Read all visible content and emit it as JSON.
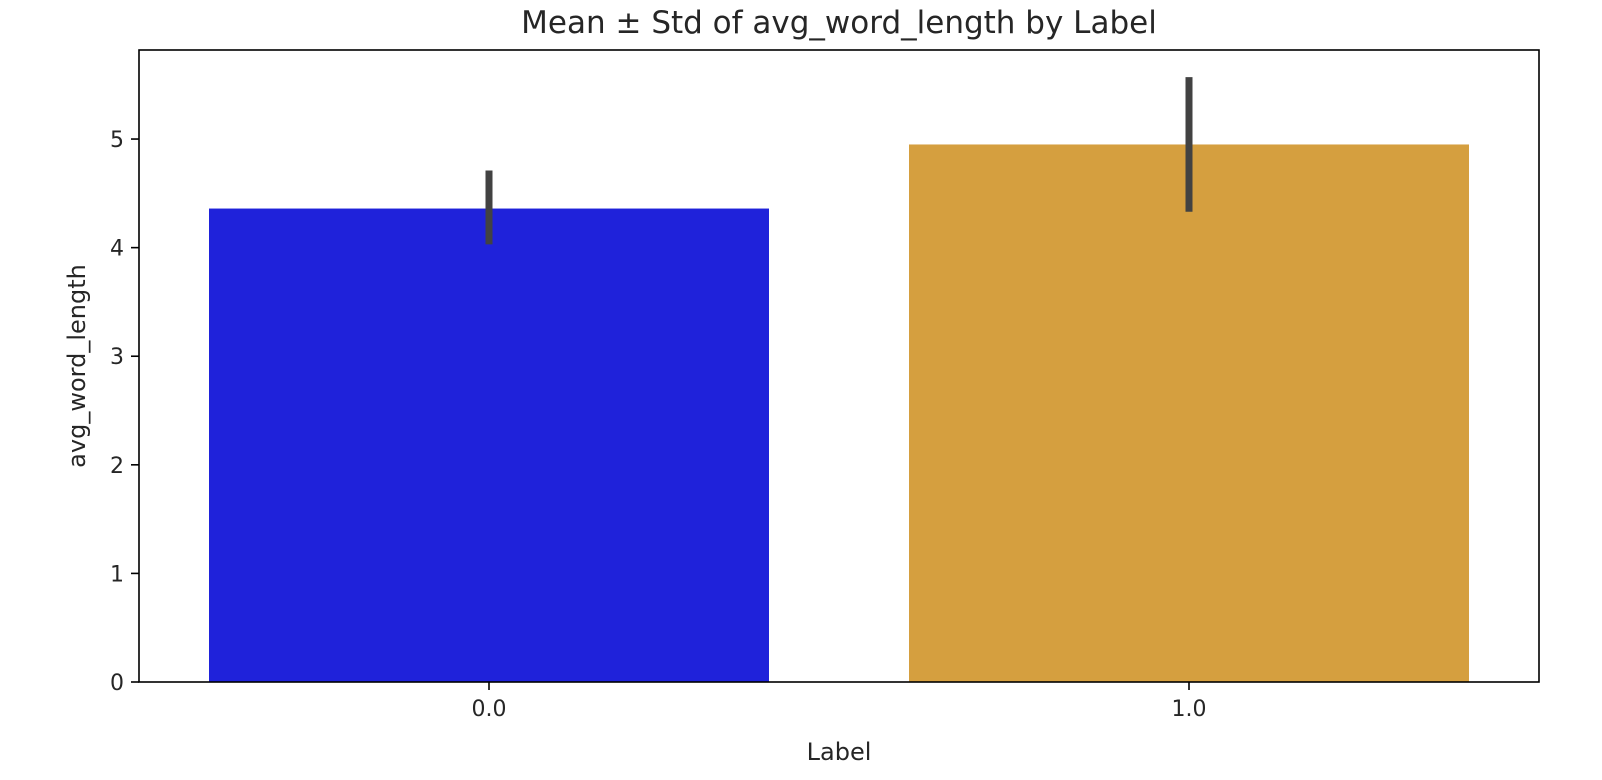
{
  "chart_data": {
    "type": "bar",
    "title": "Mean ± Std of avg_word_length by Label",
    "xlabel": "Label",
    "ylabel": "avg_word_length",
    "categories": [
      "0.0",
      "1.0"
    ],
    "values": [
      4.36,
      4.95
    ],
    "error_bars": [
      {
        "low": 4.03,
        "high": 4.71
      },
      {
        "low": 4.33,
        "high": 5.57
      }
    ],
    "colors": [
      "#1f22da",
      "#d59f3f"
    ],
    "error_bar_color": "#424242",
    "ylim": [
      0,
      5.82
    ],
    "yticks": [
      "0",
      "1",
      "2",
      "3",
      "4",
      "5"
    ],
    "grid": false,
    "legend": false
  }
}
